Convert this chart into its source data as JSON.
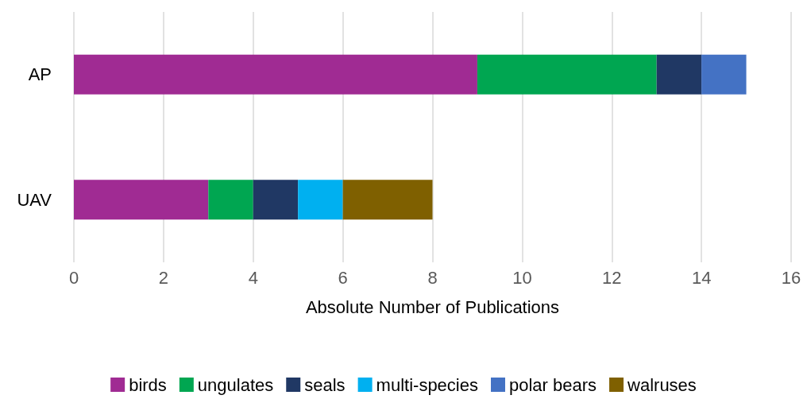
{
  "chart_data": {
    "type": "bar",
    "orientation": "horizontal",
    "stacked": true,
    "xlabel": "Absolute Number of Publications",
    "categories": [
      "AP",
      "UAV"
    ],
    "series": [
      {
        "name": "birds",
        "color": "#a02b93",
        "values": [
          9,
          3
        ]
      },
      {
        "name": "ungulates",
        "color": "#00a651",
        "values": [
          4,
          1
        ]
      },
      {
        "name": "seals",
        "color": "#203864",
        "values": [
          1,
          1
        ]
      },
      {
        "name": "multi-species",
        "color": "#00b0f0",
        "values": [
          0,
          1
        ]
      },
      {
        "name": "polar bears",
        "color": "#4472c4",
        "values": [
          1,
          0
        ]
      },
      {
        "name": "walruses",
        "color": "#7f6000",
        "values": [
          0,
          2
        ]
      }
    ],
    "xlim": [
      0,
      16
    ],
    "xticks": [
      0,
      2,
      4,
      6,
      8,
      10,
      12,
      14,
      16
    ],
    "grid": "x",
    "legend": "bottom"
  }
}
